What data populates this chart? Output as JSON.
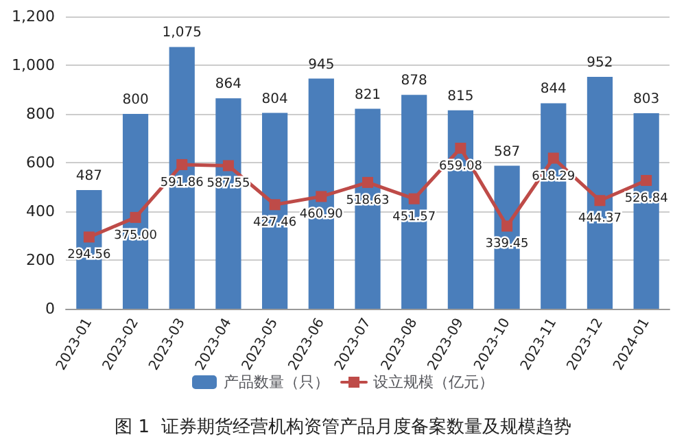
{
  "chart_data": {
    "type": "bar",
    "title": "图 1  证券期货经营机构资管产品月度备案数量及规模趋势",
    "categories": [
      "2023-01",
      "2023-02",
      "2023-03",
      "2023-04",
      "2023-05",
      "2023-06",
      "2023-07",
      "2023-08",
      "2023-09",
      "2023-10",
      "2023-11",
      "2023-12",
      "2024-01"
    ],
    "series": [
      {
        "name": "产品数量（只）",
        "color": "#4a7ebb",
        "values": [
          487,
          800,
          1075,
          864,
          804,
          945,
          821,
          878,
          815,
          587,
          844,
          952,
          803
        ],
        "value_labels": [
          "487",
          "800",
          "1,075",
          "864",
          "804",
          "945",
          "821",
          "878",
          "815",
          "587",
          "844",
          "952",
          "803"
        ]
      },
      {
        "name": "设立规模（亿元）",
        "type": "line",
        "color": "#be4b48",
        "marker": "square",
        "line_style": "solid",
        "values": [
          294.56,
          375.0,
          591.86,
          587.55,
          427.46,
          460.9,
          518.63,
          451.57,
          659.08,
          339.45,
          618.29,
          444.37,
          526.84
        ],
        "value_labels": [
          "294.56",
          "375.00",
          "591.86",
          "587.55",
          "427.46",
          "460.90",
          "518.63",
          "451.57",
          "659.08",
          "339.45",
          "618.29",
          "444.37",
          "526.84"
        ]
      }
    ],
    "ylim": [
      0,
      1200
    ],
    "yticks": [
      0,
      200,
      400,
      600,
      800,
      {
        "value": 1000,
        "label": "1,000"
      },
      {
        "value": 1200,
        "label": "1,200"
      }
    ],
    "grid": "y",
    "legend": "bottom"
  }
}
